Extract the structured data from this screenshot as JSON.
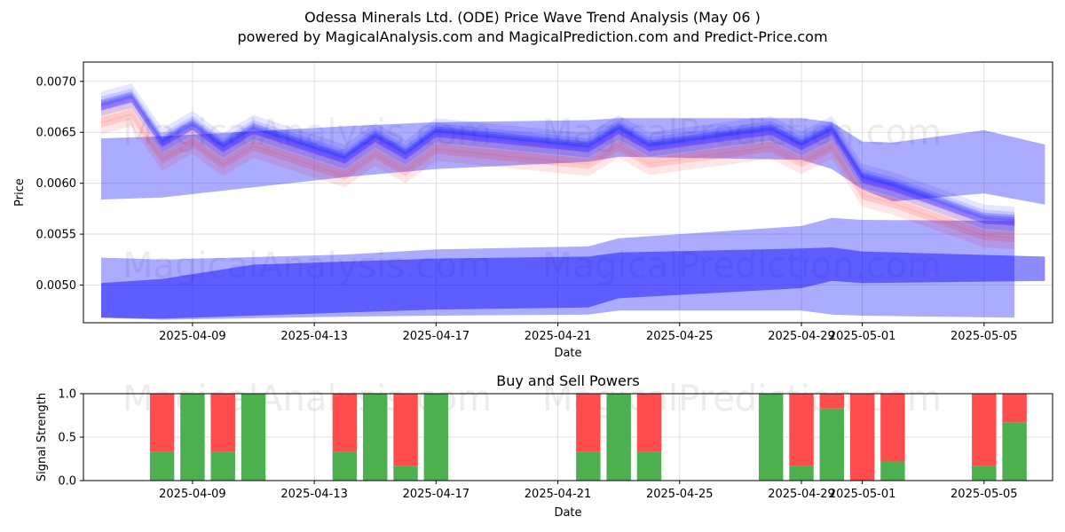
{
  "title_line1": "Odessa Minerals Ltd. (ODE) Price Wave Trend Analysis (May 06 )",
  "title_line2": "powered by MagicalAnalysis.com and MagicalPrediction.com and Predict-Price.com",
  "watermarks": [
    "MagicalAnalysis.com",
    "MagicalPrediction.com"
  ],
  "colors": {
    "buy": "#4caf50",
    "sell": "#ff4c4c",
    "band_blue": "#0000ff",
    "band_red": "#ff0000"
  },
  "chart_data": [
    {
      "type": "area",
      "title": "",
      "xlabel": "Date",
      "ylabel": "Price",
      "x_range": [
        "2025-04-05 10:00",
        "2025-05-07 06:00"
      ],
      "ylim": [
        0.00463,
        0.00719
      ],
      "yticks": [
        "0.0050",
        "0.0055",
        "0.0060",
        "0.0065",
        "0.0070"
      ],
      "xticks": [
        "2025-04-09",
        "2025-04-13",
        "2025-04-17",
        "2025-04-21",
        "2025-04-25",
        "2025-04-29",
        "2025-05-01",
        "2025-05-05"
      ],
      "grid": true,
      "dates": [
        "2025-04-06",
        "2025-04-07",
        "2025-04-08",
        "2025-04-09",
        "2025-04-10",
        "2025-04-11",
        "2025-04-14",
        "2025-04-15",
        "2025-04-16",
        "2025-04-17",
        "2025-04-22",
        "2025-04-23",
        "2025-04-24",
        "2025-04-28",
        "2025-04-29",
        "2025-04-30",
        "2025-05-01",
        "2025-05-02",
        "2025-05-05",
        "2025-05-06"
      ],
      "center_line": [
        0.00676,
        0.00684,
        0.0064,
        0.00657,
        0.00635,
        0.00653,
        0.00624,
        0.00645,
        0.00628,
        0.0065,
        0.00635,
        0.00653,
        0.00636,
        0.00652,
        0.00637,
        0.00652,
        0.00605,
        0.00597,
        0.00565,
        0.00563
      ],
      "wave_bands": [
        {
          "name": "upper-wide",
          "dates": [
            "2025-04-06",
            "2025-04-08",
            "2025-04-14",
            "2025-04-17",
            "2025-04-22",
            "2025-04-23",
            "2025-04-29",
            "2025-04-30",
            "2025-05-01",
            "2025-05-02",
            "2025-05-05",
            "2025-05-07"
          ],
          "upper": [
            0.00644,
            0.00646,
            0.00656,
            0.0066,
            0.00662,
            0.00664,
            0.00664,
            0.0066,
            0.00641,
            0.0064,
            0.00652,
            0.00638
          ],
          "lower": [
            0.00584,
            0.00586,
            0.00606,
            0.00614,
            0.00621,
            0.00626,
            0.00623,
            0.00614,
            0.00594,
            0.00582,
            0.0059,
            0.00579
          ]
        },
        {
          "name": "lower-wide",
          "dates": [
            "2025-04-06",
            "2025-04-08",
            "2025-04-14",
            "2025-04-17",
            "2025-04-22",
            "2025-04-23",
            "2025-04-29",
            "2025-04-30",
            "2025-05-01",
            "2025-05-06"
          ],
          "upper": [
            0.00527,
            0.00525,
            0.0053,
            0.00535,
            0.00538,
            0.00546,
            0.00558,
            0.00566,
            0.00564,
            0.00563
          ],
          "lower": [
            0.00468,
            0.00466,
            0.00469,
            0.0047,
            0.00471,
            0.00475,
            0.00475,
            0.00471,
            0.0047,
            0.00468
          ]
        },
        {
          "name": "lower-core",
          "dates": [
            "2025-04-06",
            "2025-04-08",
            "2025-04-11",
            "2025-04-17",
            "2025-04-22",
            "2025-04-23",
            "2025-04-29",
            "2025-04-30",
            "2025-05-01",
            "2025-05-07"
          ],
          "upper": [
            0.00502,
            0.00506,
            0.0052,
            0.00526,
            0.00528,
            0.00532,
            0.00536,
            0.00537,
            0.00533,
            0.00528
          ],
          "lower": [
            0.00468,
            0.00467,
            0.0047,
            0.00476,
            0.00478,
            0.00487,
            0.00497,
            0.00504,
            0.00502,
            0.00504
          ]
        }
      ]
    },
    {
      "type": "bar",
      "title": "Buy and Sell Powers",
      "xlabel": "Date",
      "ylabel": "Signal Strength",
      "ylim": [
        0,
        1
      ],
      "yticks": [
        "0.0",
        "0.5",
        "1.0"
      ],
      "xticks": [
        "2025-04-09",
        "2025-04-13",
        "2025-04-17",
        "2025-04-21",
        "2025-04-25",
        "2025-04-29",
        "2025-05-01",
        "2025-05-05"
      ],
      "series": [
        {
          "name": "Buy",
          "values": [
            0.33,
            1.0,
            0.33,
            1.0,
            0.33,
            1.0,
            0.17,
            1.0,
            0.33,
            1.0,
            0.33,
            1.0,
            0.17,
            0.83,
            0.0,
            0.22,
            0.17,
            0.67
          ]
        },
        {
          "name": "Sell",
          "values": [
            0.67,
            0.0,
            0.67,
            0.0,
            0.67,
            0.0,
            0.83,
            0.0,
            0.67,
            0.0,
            0.67,
            0.0,
            0.83,
            0.17,
            1.0,
            0.78,
            0.83,
            0.33
          ]
        }
      ],
      "categories": [
        "2025-04-08",
        "2025-04-09",
        "2025-04-10",
        "2025-04-11",
        "2025-04-14",
        "2025-04-15",
        "2025-04-16",
        "2025-04-17",
        "2025-04-22",
        "2025-04-23",
        "2025-04-24",
        "2025-04-28",
        "2025-04-29",
        "2025-04-30",
        "2025-05-01",
        "2025-05-02",
        "2025-05-05",
        "2025-05-06"
      ]
    }
  ]
}
